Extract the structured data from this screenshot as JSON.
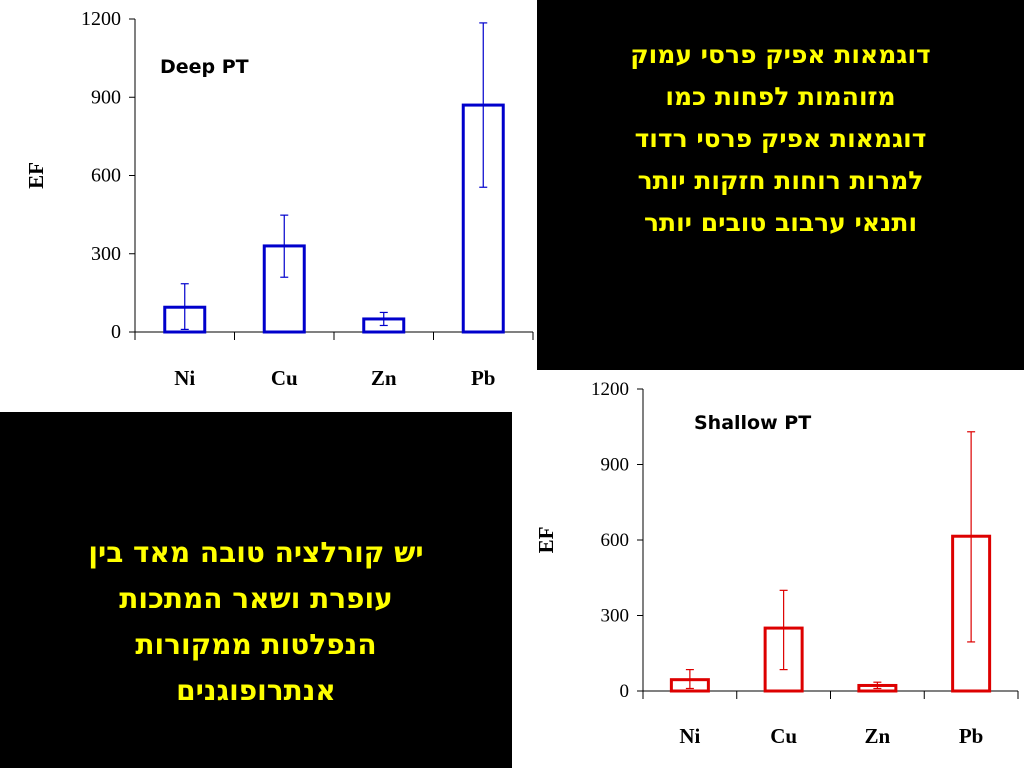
{
  "panels": {
    "top_text": [
      "דוגמאות אפיק פרסי עמוק",
      "מזוהמות לפחות כמו",
      "דוגמאות אפיק פרסי רדוד",
      "למרות רוחות חזקות יותר",
      "ותנאי ערבוב טובים יותר"
    ],
    "bottom_text": [
      "יש קורלציה טובה מאד בין",
      "עופרת ושאר המתכות",
      "הנפלטות ממקורות",
      "אנתרופוגנים"
    ],
    "text_color": "#ffff00",
    "background": "#000000"
  },
  "chart_data": [
    {
      "type": "bar",
      "annotation": "Deep PT",
      "ylabel": "EF",
      "categories": [
        "Ni",
        "Cu",
        "Zn",
        "Pb"
      ],
      "values": [
        95,
        330,
        50,
        870
      ],
      "error_low": [
        10,
        210,
        25,
        555
      ],
      "error_high": [
        185,
        448,
        75,
        1185
      ],
      "ylim": [
        0,
        1200
      ],
      "yticks": [
        0,
        300,
        600,
        900,
        1200
      ],
      "color": "#0000cc"
    },
    {
      "type": "bar",
      "annotation": "Shallow PT",
      "ylabel": "EF",
      "categories": [
        "Ni",
        "Cu",
        "Zn",
        "Pb"
      ],
      "values": [
        45,
        250,
        22,
        615
      ],
      "error_low": [
        10,
        85,
        10,
        195
      ],
      "error_high": [
        85,
        400,
        35,
        1030
      ],
      "ylim": [
        0,
        1200
      ],
      "yticks": [
        0,
        300,
        600,
        900,
        1200
      ],
      "color": "#dd0000"
    }
  ]
}
